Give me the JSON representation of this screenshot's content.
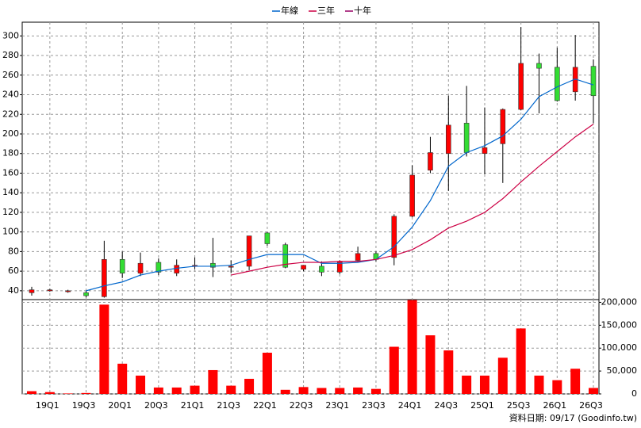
{
  "chart_data": [
    {
      "type": "candlestick",
      "categories": [
        null,
        "19Q1",
        null,
        "19Q3",
        null,
        "20Q1",
        null,
        "20Q3",
        null,
        "21Q1",
        null,
        "21Q3",
        null,
        "22Q1",
        null,
        "22Q3",
        null,
        "23Q1",
        null,
        "23Q3",
        null,
        "24Q1",
        null,
        "24Q3",
        null,
        "25Q1",
        null,
        "25Q3",
        null,
        "26Q1",
        null,
        "26Q3"
      ],
      "open": [
        38,
        40,
        39,
        38,
        34,
        72,
        58,
        69,
        58,
        65,
        68,
        64,
        65,
        99,
        87,
        62,
        65,
        59,
        71,
        78,
        74,
        116,
        163,
        180,
        211,
        180,
        190,
        225,
        272,
        268,
        243,
        269
      ],
      "high": [
        44,
        42,
        41,
        40,
        91,
        80,
        79,
        73,
        72,
        74,
        94,
        71,
        96,
        100,
        89,
        66,
        70,
        71,
        85,
        80,
        118,
        168,
        197,
        239,
        249,
        227,
        226,
        309,
        282,
        288,
        301,
        276
      ],
      "low": [
        35,
        39,
        38,
        33,
        33,
        53,
        55,
        56,
        55,
        62,
        54,
        58,
        61,
        86,
        63,
        60,
        55,
        57,
        69,
        70,
        66,
        115,
        160,
        142,
        177,
        159,
        150,
        224,
        221,
        233,
        234,
        211
      ],
      "close": [
        41,
        41,
        40,
        35,
        72,
        58,
        68,
        59,
        66,
        66,
        64,
        65,
        96,
        88,
        64,
        66,
        59,
        70,
        78,
        72,
        116,
        158,
        181,
        209,
        181,
        186,
        225,
        272,
        267,
        234,
        268,
        239
      ],
      "up_color": "#ff0000",
      "down_color": "#33dd33",
      "series": [
        {
          "name": "年線",
          "color": "#0066cc",
          "values": [
            null,
            null,
            null,
            40,
            45,
            49,
            56,
            60,
            63,
            65,
            65,
            66,
            72,
            77,
            77,
            77,
            68,
            68,
            69,
            72,
            85,
            105,
            132,
            167,
            181,
            188,
            198,
            215,
            238,
            248,
            256,
            250
          ]
        },
        {
          "name": "三年",
          "color": "#cc0044",
          "values": [
            null,
            null,
            null,
            null,
            null,
            null,
            null,
            null,
            null,
            null,
            null,
            56,
            60,
            64,
            67,
            69,
            69,
            70,
            70,
            72,
            76,
            82,
            92,
            104,
            111,
            120,
            134,
            151,
            167,
            182,
            197,
            210
          ]
        },
        {
          "name": "十年",
          "color": "#990066",
          "values": [
            null,
            null,
            null,
            null,
            null,
            null,
            null,
            null,
            null,
            null,
            null,
            null,
            null,
            null,
            null,
            null,
            null,
            null,
            null,
            null,
            null,
            null,
            null,
            null,
            null,
            null,
            null,
            null,
            null,
            null,
            null,
            null
          ]
        }
      ],
      "ylim": [
        31,
        314
      ],
      "yticks": [
        40,
        60,
        80,
        100,
        120,
        140,
        160,
        180,
        200,
        220,
        240,
        260,
        280,
        300
      ],
      "grid": true
    },
    {
      "type": "bar",
      "values": [
        6000,
        4000,
        1000,
        2000,
        195000,
        66000,
        40000,
        14000,
        14000,
        18000,
        52000,
        18000,
        33000,
        90000,
        9000,
        15000,
        13000,
        13000,
        14000,
        11000,
        103000,
        205000,
        128000,
        95000,
        40000,
        40000,
        79000,
        143000,
        40000,
        30000,
        55000,
        13000
      ],
      "color": "#ff0000",
      "ylim": [
        0,
        206000
      ],
      "yticks": [
        0,
        {
          "value": 50000,
          "label": "50,000"
        },
        {
          "value": 100000,
          "label": "100,000"
        },
        {
          "value": 150000,
          "label": "150,000"
        },
        {
          "value": 200000,
          "label": "200,000"
        }
      ],
      "grid": true,
      "footnote": "資料日期: 09/17 (Goodinfo.tw)"
    }
  ]
}
